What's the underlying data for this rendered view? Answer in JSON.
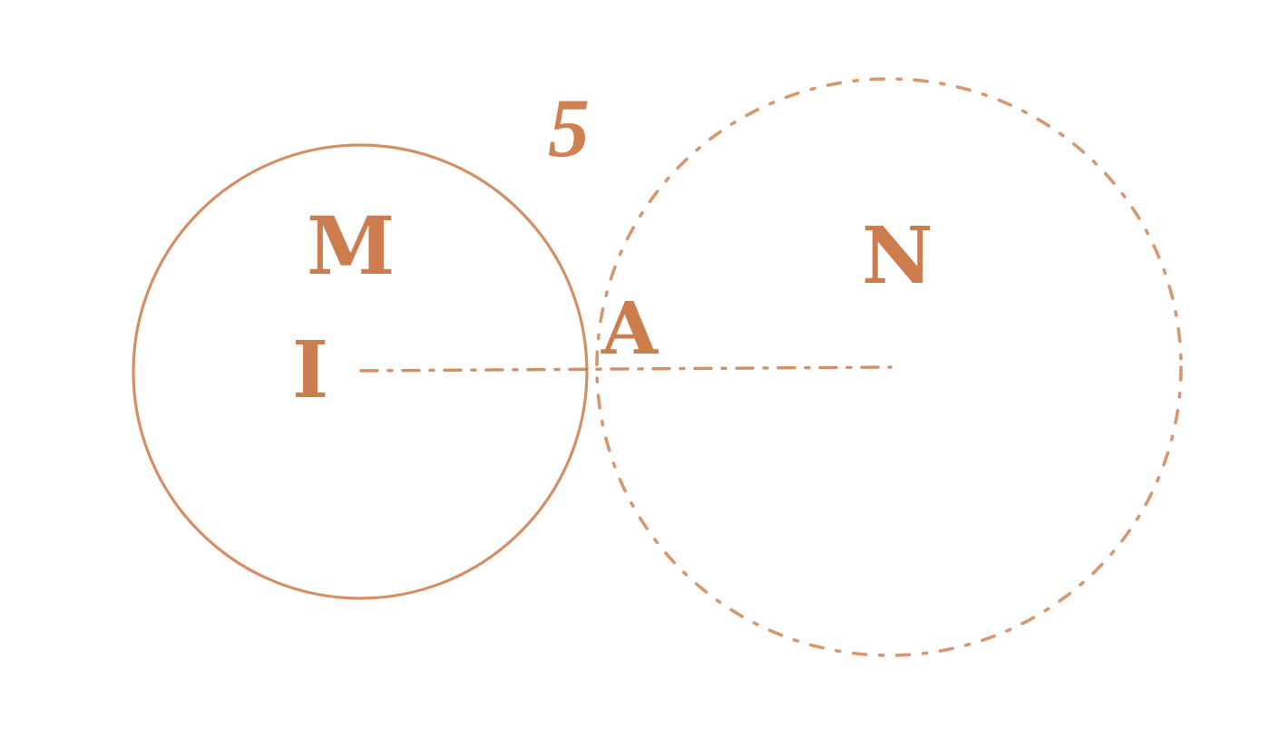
{
  "figure": {
    "number": "5",
    "ink_color": "#c8703a",
    "labels": {
      "M": "M",
      "N": "N",
      "I": "I",
      "A": "A"
    },
    "circles": [
      {
        "id": "circle-M",
        "style": "solid"
      },
      {
        "id": "circle-N",
        "style": "dashed"
      }
    ]
  }
}
